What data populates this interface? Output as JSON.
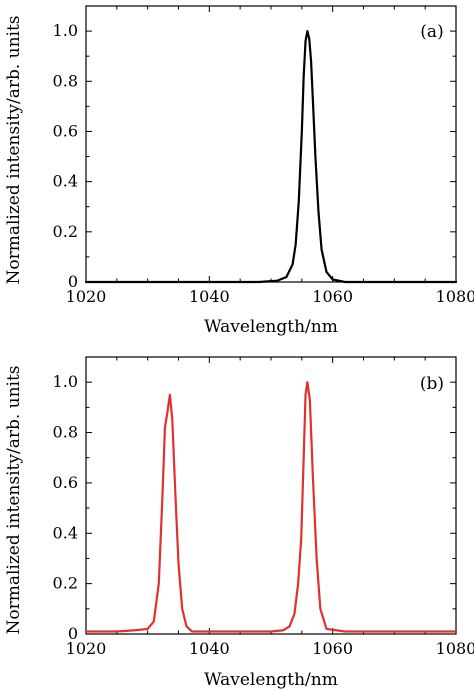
{
  "chart_data": [
    {
      "type": "line",
      "panel_label": "(a)",
      "xlabel": "Wavelength/nm",
      "ylabel": "Normalized intensity/arb. units",
      "xlim": [
        1020,
        1080
      ],
      "ylim": [
        0,
        1.1
      ],
      "xticks": [
        1020,
        1040,
        1060,
        1080
      ],
      "xtick_labels": [
        "1020",
        "1040",
        "1060",
        "1080"
      ],
      "yticks": [
        0,
        0.2,
        0.4,
        0.6,
        0.8,
        1.0
      ],
      "ytick_labels": [
        "0",
        "0.2",
        "0.4",
        "0.6",
        "0.8",
        "1.0"
      ],
      "grid": false,
      "series": [
        {
          "color": "#000000",
          "x": [
            1020,
            1030,
            1040,
            1048,
            1051,
            1052.5,
            1053.5,
            1054,
            1054.5,
            1055,
            1055.3,
            1055.6,
            1055.9,
            1056.2,
            1056.5,
            1056.8,
            1057.2,
            1057.7,
            1058.2,
            1059,
            1060,
            1062,
            1070,
            1080
          ],
          "y": [
            0.0,
            0.0,
            0.0,
            0.0,
            0.005,
            0.02,
            0.07,
            0.15,
            0.32,
            0.6,
            0.82,
            0.96,
            1.0,
            0.97,
            0.88,
            0.72,
            0.5,
            0.28,
            0.13,
            0.04,
            0.01,
            0.0,
            0.0,
            0.0
          ]
        }
      ]
    },
    {
      "type": "line",
      "panel_label": "(b)",
      "xlabel": "Wavelength/nm",
      "ylabel": "Normalized intensity/arb. units",
      "xlim": [
        1020,
        1080
      ],
      "ylim": [
        0,
        1.1
      ],
      "xticks": [
        1020,
        1040,
        1060,
        1080
      ],
      "xtick_labels": [
        "1020",
        "1040",
        "1060",
        "1080"
      ],
      "yticks": [
        0,
        0.2,
        0.4,
        0.6,
        0.8,
        1.0
      ],
      "ytick_labels": [
        "0",
        "0.2",
        "0.4",
        "0.6",
        "0.8",
        "1.0"
      ],
      "grid": false,
      "series": [
        {
          "color": "#e03030",
          "x": [
            1020,
            1025,
            1028,
            1030,
            1031,
            1031.8,
            1032.4,
            1032.8,
            1033.2,
            1033.6,
            1034.0,
            1034.5,
            1035.0,
            1035.6,
            1036.3,
            1037.2,
            1040,
            1045,
            1050,
            1052,
            1053,
            1053.8,
            1054.4,
            1054.9,
            1055.3,
            1055.6,
            1055.9,
            1056.3,
            1056.8,
            1057.4,
            1058.0,
            1059,
            1062,
            1070,
            1080
          ],
          "y": [
            0.01,
            0.01,
            0.015,
            0.02,
            0.05,
            0.2,
            0.55,
            0.82,
            0.88,
            0.95,
            0.85,
            0.55,
            0.28,
            0.1,
            0.03,
            0.01,
            0.01,
            0.01,
            0.01,
            0.015,
            0.03,
            0.08,
            0.2,
            0.38,
            0.7,
            0.95,
            1.0,
            0.93,
            0.62,
            0.3,
            0.1,
            0.02,
            0.01,
            0.01,
            0.01
          ]
        }
      ]
    }
  ]
}
